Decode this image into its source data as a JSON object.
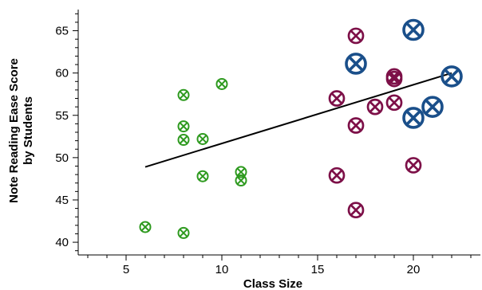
{
  "chart_data": {
    "type": "scatter",
    "xlabel": "Class Size",
    "ylabel_lines": [
      "Note Reading Ease Score",
      "by Students"
    ],
    "xlim": [
      2.5,
      23.5
    ],
    "ylim": [
      38.5,
      67.5
    ],
    "x_ticks": [
      5,
      10,
      15,
      20
    ],
    "y_ticks": [
      40,
      45,
      50,
      55,
      60,
      65
    ],
    "x_minor_ticks": [
      3,
      4,
      6,
      7,
      8,
      9,
      11,
      12,
      13,
      14,
      16,
      17,
      18,
      19,
      21,
      22,
      23
    ],
    "y_minor_ticks": [
      39,
      41,
      42,
      43,
      44,
      46,
      47,
      48,
      49,
      51,
      52,
      53,
      54,
      56,
      57,
      58,
      59,
      61,
      62,
      63,
      64,
      66,
      67
    ],
    "x_tick_labels": [
      "5",
      "10",
      "15",
      "20"
    ],
    "y_tick_labels": [
      "40",
      "45",
      "50",
      "55",
      "60",
      "65"
    ],
    "grid": false,
    "series": [
      {
        "color": "#2e9a1f",
        "marker_scale": 0.65,
        "points": [
          [
            6,
            41.8
          ],
          [
            8,
            41.1
          ],
          [
            8,
            52.1
          ],
          [
            8,
            53.7
          ],
          [
            8,
            57.4
          ],
          [
            9,
            47.8
          ],
          [
            9,
            52.2
          ],
          [
            10,
            58.7
          ],
          [
            11,
            48.3
          ],
          [
            11,
            47.3
          ]
        ]
      },
      {
        "color": "#7d1048",
        "marker_scale": 0.9,
        "points": [
          [
            16,
            57.0
          ],
          [
            16,
            47.9
          ],
          [
            17,
            64.4
          ],
          [
            17,
            53.8
          ],
          [
            17,
            43.8
          ],
          [
            18,
            56.0
          ],
          [
            19,
            59.6
          ],
          [
            19,
            59.3
          ],
          [
            19,
            56.5
          ],
          [
            20,
            49.1
          ]
        ]
      },
      {
        "color": "#1a4f8a",
        "marker_scale": 1.2,
        "points": [
          [
            17,
            61.1
          ],
          [
            20,
            65.1
          ],
          [
            20,
            54.7
          ],
          [
            21,
            56.0
          ],
          [
            22,
            59.6
          ]
        ]
      }
    ],
    "trend_line": {
      "color": "#000000",
      "x": [
        6,
        22
      ],
      "y": [
        48.9,
        60.0
      ]
    }
  }
}
